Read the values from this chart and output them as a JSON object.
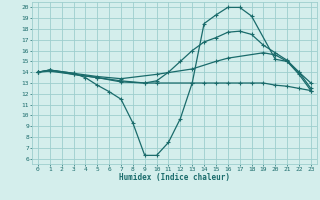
{
  "xlabel": "Humidex (Indice chaleur)",
  "xlim": [
    -0.5,
    23.5
  ],
  "ylim": [
    5.5,
    20.5
  ],
  "xticks": [
    0,
    1,
    2,
    3,
    4,
    5,
    6,
    7,
    8,
    9,
    10,
    11,
    12,
    13,
    14,
    15,
    16,
    17,
    18,
    19,
    20,
    21,
    22,
    23
  ],
  "yticks": [
    6,
    7,
    8,
    9,
    10,
    11,
    12,
    13,
    14,
    15,
    16,
    17,
    18,
    19,
    20
  ],
  "bg_color": "#d4eeec",
  "grid_color": "#9ecece",
  "line_color": "#1a6b6b",
  "curves": [
    {
      "x": [
        0,
        1,
        3,
        4,
        5,
        6,
        7,
        8,
        9,
        10,
        11,
        12,
        13,
        14,
        15,
        16,
        17,
        18,
        20,
        21,
        22,
        23
      ],
      "y": [
        14,
        14.2,
        13.9,
        13.5,
        12.8,
        12.2,
        11.5,
        9.3,
        6.3,
        6.3,
        7.5,
        9.7,
        13.0,
        18.5,
        19.3,
        20.0,
        20.0,
        19.2,
        15.2,
        15.0,
        13.8,
        12.3
      ]
    },
    {
      "x": [
        0,
        1,
        3,
        5,
        7,
        9,
        10,
        11,
        12,
        13,
        14,
        15,
        16,
        17,
        18,
        19,
        20,
        21,
        22,
        23
      ],
      "y": [
        14,
        14.2,
        13.8,
        13.5,
        13.1,
        13.0,
        13.2,
        14.0,
        15.0,
        16.0,
        16.8,
        17.2,
        17.7,
        17.8,
        17.5,
        16.5,
        15.8,
        15.1,
        14.0,
        12.5
      ]
    },
    {
      "x": [
        0,
        1,
        3,
        5,
        7,
        10,
        13,
        15,
        16,
        19,
        20,
        21,
        22,
        23
      ],
      "y": [
        14,
        14.2,
        13.9,
        13.6,
        13.4,
        13.8,
        14.3,
        15.0,
        15.3,
        15.8,
        15.6,
        15.0,
        14.0,
        13.0
      ]
    },
    {
      "x": [
        0,
        1,
        3,
        5,
        7,
        9,
        10,
        13,
        14,
        15,
        16,
        17,
        18,
        19,
        20,
        21,
        22,
        23
      ],
      "y": [
        14,
        14.1,
        13.8,
        13.5,
        13.2,
        13.0,
        13.0,
        13.0,
        13.0,
        13.0,
        13.0,
        13.0,
        13.0,
        13.0,
        12.8,
        12.7,
        12.5,
        12.3
      ]
    }
  ]
}
